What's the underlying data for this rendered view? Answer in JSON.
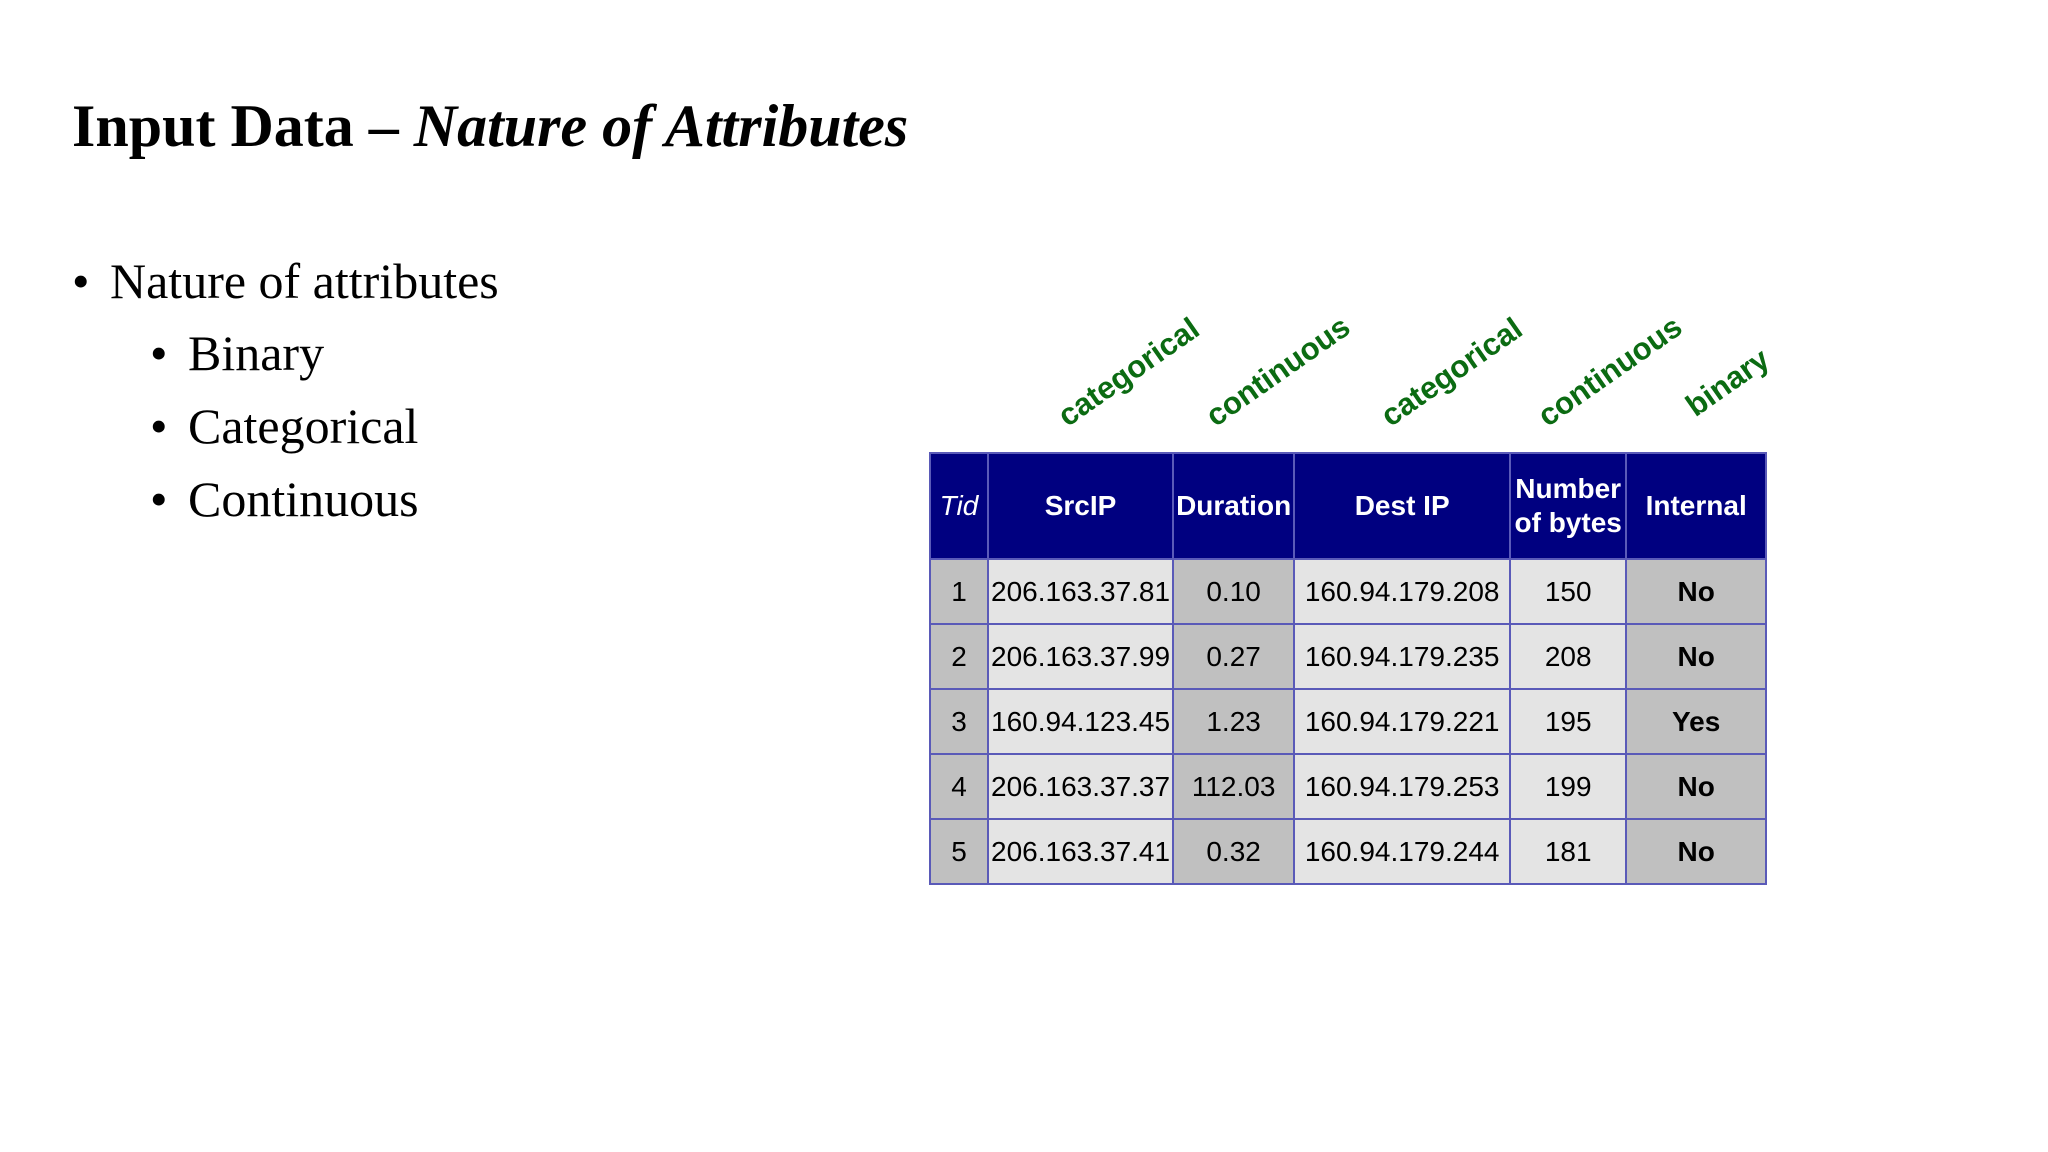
{
  "title": {
    "main": "Input Data – ",
    "italic": "Nature of Attributes"
  },
  "bullets": {
    "level1": "Nature of attributes",
    "level2": [
      "Binary",
      "Categorical",
      "Continuous"
    ],
    "marker": "•"
  },
  "attribute_types": [
    "categorical",
    "continuous",
    "categorical",
    "continuous",
    "binary"
  ],
  "table": {
    "headers": [
      "Tid",
      "SrcIP",
      "Duration",
      "Dest IP",
      "Number of bytes",
      "Internal"
    ],
    "rows": [
      [
        "1",
        "206.163.37.81",
        "0.10",
        "160.94.179.208",
        "150",
        "No"
      ],
      [
        "2",
        "206.163.37.99",
        "0.27",
        "160.94.179.235",
        "208",
        "No"
      ],
      [
        "3",
        "160.94.123.45",
        "1.23",
        "160.94.179.221",
        "195",
        "Yes"
      ],
      [
        "4",
        "206.163.37.37",
        "112.03",
        "160.94.179.253",
        "199",
        "No"
      ],
      [
        "5",
        "206.163.37.41",
        "0.32",
        "160.94.179.244",
        "181",
        "No"
      ]
    ]
  },
  "colors": {
    "header_bg": "#000080",
    "label_green": "#0b6b12",
    "cell_dark": "#c0c0c0",
    "cell_light": "#e4e4e4"
  }
}
